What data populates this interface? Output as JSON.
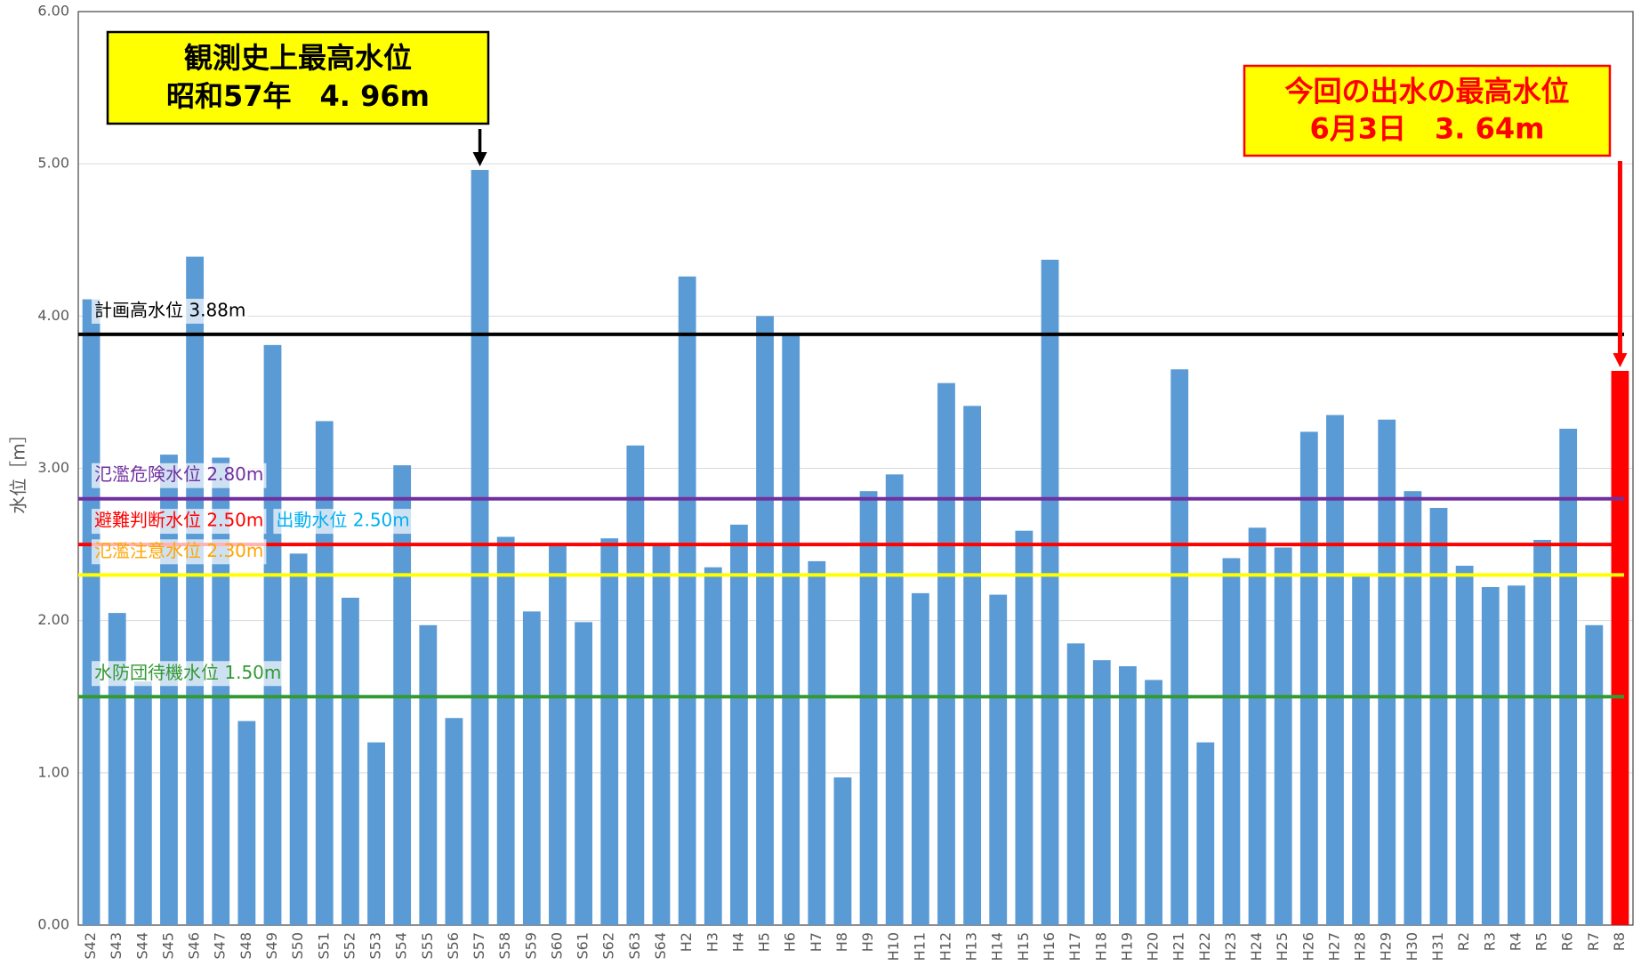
{
  "chart_data": {
    "type": "bar",
    "y_label": "水位［m］",
    "categories": [
      "S42",
      "S43",
      "S44",
      "S45",
      "S46",
      "S47",
      "S48",
      "S49",
      "S50",
      "S51",
      "S52",
      "S53",
      "S54",
      "S55",
      "S56",
      "S57",
      "S58",
      "S59",
      "S60",
      "S61",
      "S62",
      "S63",
      "S64",
      "H2",
      "H3",
      "H4",
      "H5",
      "H6",
      "H7",
      "H8",
      "H9",
      "H10",
      "H11",
      "H12",
      "H13",
      "H14",
      "H15",
      "H16",
      "H17",
      "H18",
      "H19",
      "H20",
      "H21",
      "H22",
      "H23",
      "H24",
      "H25",
      "H26",
      "H27",
      "H28",
      "H29",
      "H30",
      "H31",
      "R2",
      "R3",
      "R4",
      "R5",
      "R6",
      "R7",
      "R8"
    ],
    "values": [
      4.11,
      2.05,
      1.6,
      3.09,
      4.39,
      3.07,
      1.34,
      3.81,
      2.44,
      3.31,
      2.15,
      1.2,
      3.02,
      1.97,
      1.36,
      4.96,
      2.55,
      2.06,
      2.51,
      1.99,
      2.54,
      3.15,
      2.51,
      4.26,
      2.35,
      2.63,
      4.0,
      3.88,
      2.39,
      0.97,
      2.85,
      2.96,
      2.18,
      3.56,
      3.41,
      2.17,
      2.59,
      4.37,
      1.85,
      1.74,
      1.7,
      1.61,
      3.65,
      1.2,
      2.41,
      2.61,
      2.48,
      3.24,
      3.35,
      2.29,
      3.32,
      2.85,
      2.74,
      2.36,
      2.22,
      2.23,
      2.53,
      3.26,
      1.97,
      3.64
    ],
    "colors": [
      "#5b9bd5",
      "#5b9bd5",
      "#5b9bd5",
      "#5b9bd5",
      "#5b9bd5",
      "#5b9bd5",
      "#5b9bd5",
      "#5b9bd5",
      "#5b9bd5",
      "#5b9bd5",
      "#5b9bd5",
      "#5b9bd5",
      "#5b9bd5",
      "#5b9bd5",
      "#5b9bd5",
      "#5b9bd5",
      "#5b9bd5",
      "#5b9bd5",
      "#5b9bd5",
      "#5b9bd5",
      "#5b9bd5",
      "#5b9bd5",
      "#5b9bd5",
      "#5b9bd5",
      "#5b9bd5",
      "#5b9bd5",
      "#5b9bd5",
      "#5b9bd5",
      "#5b9bd5",
      "#5b9bd5",
      "#5b9bd5",
      "#5b9bd5",
      "#5b9bd5",
      "#5b9bd5",
      "#5b9bd5",
      "#5b9bd5",
      "#5b9bd5",
      "#5b9bd5",
      "#5b9bd5",
      "#5b9bd5",
      "#5b9bd5",
      "#5b9bd5",
      "#5b9bd5",
      "#5b9bd5",
      "#5b9bd5",
      "#5b9bd5",
      "#5b9bd5",
      "#5b9bd5",
      "#5b9bd5",
      "#5b9bd5",
      "#5b9bd5",
      "#5b9bd5",
      "#5b9bd5",
      "#5b9bd5",
      "#5b9bd5",
      "#5b9bd5",
      "#5b9bd5",
      "#5b9bd5",
      "#5b9bd5",
      "#ff0000"
    ],
    "ylim": [
      0,
      6
    ],
    "yticks": [
      {
        "value": 0,
        "label": "0.00"
      },
      {
        "value": 1,
        "label": "1.00"
      },
      {
        "value": 2,
        "label": "2.00"
      },
      {
        "value": 3,
        "label": "3.00"
      },
      {
        "value": 4,
        "label": "4.00"
      },
      {
        "value": 5,
        "label": "5.00"
      },
      {
        "value": 6,
        "label": "6.00"
      }
    ],
    "grid": true,
    "reference_lines": [
      {
        "value": 3.88,
        "color": "#000000",
        "labels": [
          {
            "text": "計画高水位 3.88m",
            "color": "#000000"
          }
        ]
      },
      {
        "value": 2.8,
        "color": "#7030a0",
        "labels": [
          {
            "text": "氾濫危険水位 2.80m",
            "color": "#7030a0"
          }
        ]
      },
      {
        "value": 2.5,
        "color": "#ff0000",
        "labels": [
          {
            "text": "避難判断水位 2.50m",
            "color": "#ff0000"
          },
          {
            "text": "出動水位 2.50m",
            "color": "#00b0f0"
          }
        ]
      },
      {
        "value": 2.3,
        "color": "#ffff00",
        "labels": [
          {
            "text": "氾濫注意水位 2.30m",
            "color": "#ffa500"
          }
        ]
      },
      {
        "value": 1.5,
        "color": "#339933",
        "labels": [
          {
            "text": "水防団待機水位 1.50m",
            "color": "#339933"
          }
        ]
      }
    ],
    "annotations": [
      {
        "lines": [
          "観測史上最高水位",
          "昭和57年　4. 96m"
        ],
        "text_color": "#000000",
        "border_color": "#000000",
        "fill": "#ffff00"
      },
      {
        "lines": [
          "今回の出水の最高水位",
          "6月3日　3. 64m"
        ],
        "text_color": "#ff0000",
        "border_color": "#ff0000",
        "fill": "#ffff00"
      }
    ]
  }
}
